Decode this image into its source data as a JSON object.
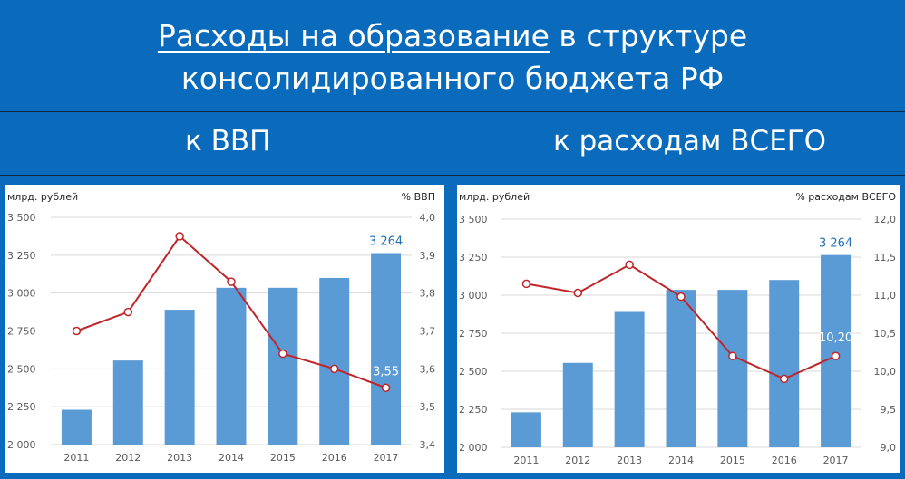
{
  "header": {
    "title_underlined": "Расходы на образование",
    "title_rest": " в структуре",
    "title_line2": "консолидированного бюджета РФ"
  },
  "left_subtitle": "к ВВП",
  "right_subtitle": "к расходам ВСЕГО",
  "colors": {
    "background": "#0a6bbd",
    "bar": "#5b9bd5",
    "line": "#c0252a",
    "marker_fill": "#ffffff",
    "label_blue": "#1f6fb8"
  },
  "chart_data": [
    {
      "type": "bar+line",
      "categories": [
        "2011",
        "2012",
        "2013",
        "2014",
        "2015",
        "2016",
        "2017"
      ],
      "series": [
        {
          "values": [
            2230,
            2555,
            2890,
            3035,
            3035,
            3100,
            3264
          ],
          "axis": "left"
        },
        {
          "values": [
            3.7,
            3.75,
            3.95,
            3.83,
            3.64,
            3.6,
            3.55
          ],
          "axis": "right"
        }
      ],
      "left_unit": "млрд. рублей",
      "right_unit": "% ВВП",
      "ylim": [
        2000,
        3500
      ],
      "y_ticks": [
        "2 000",
        "2 250",
        "2 500",
        "2 750",
        "3 000",
        "3 250",
        "3 500"
      ],
      "y2lim": [
        3.4,
        4.0
      ],
      "y2_ticks": [
        "3,4",
        "3,5",
        "3,6",
        "3,7",
        "3,8",
        "3,9",
        "4,0"
      ],
      "bar_last_label": "3 264",
      "line_last_label": "3,55",
      "grid": true,
      "legend": "none"
    },
    {
      "type": "bar+line",
      "categories": [
        "2011",
        "2012",
        "2013",
        "2014",
        "2015",
        "2016",
        "2017"
      ],
      "series": [
        {
          "values": [
            2230,
            2555,
            2890,
            3035,
            3035,
            3100,
            3264
          ],
          "axis": "left"
        },
        {
          "values": [
            11.15,
            11.03,
            11.4,
            10.98,
            10.2,
            9.9,
            10.2
          ],
          "axis": "right"
        }
      ],
      "left_unit": "млрд. рублей",
      "right_unit": "% расходам ВСЕГО",
      "ylim": [
        2000,
        3500
      ],
      "y_ticks": [
        "2 000",
        "2 250",
        "2 500",
        "2 750",
        "3 000",
        "3 250",
        "3 500"
      ],
      "y2lim": [
        9.0,
        12.0
      ],
      "y2_ticks": [
        "9,0",
        "9,5",
        "10,0",
        "10,5",
        "11,0",
        "11,5",
        "12,0"
      ],
      "bar_last_label": "3 264",
      "line_last_label": "10,20",
      "grid": true,
      "legend": "none"
    }
  ]
}
